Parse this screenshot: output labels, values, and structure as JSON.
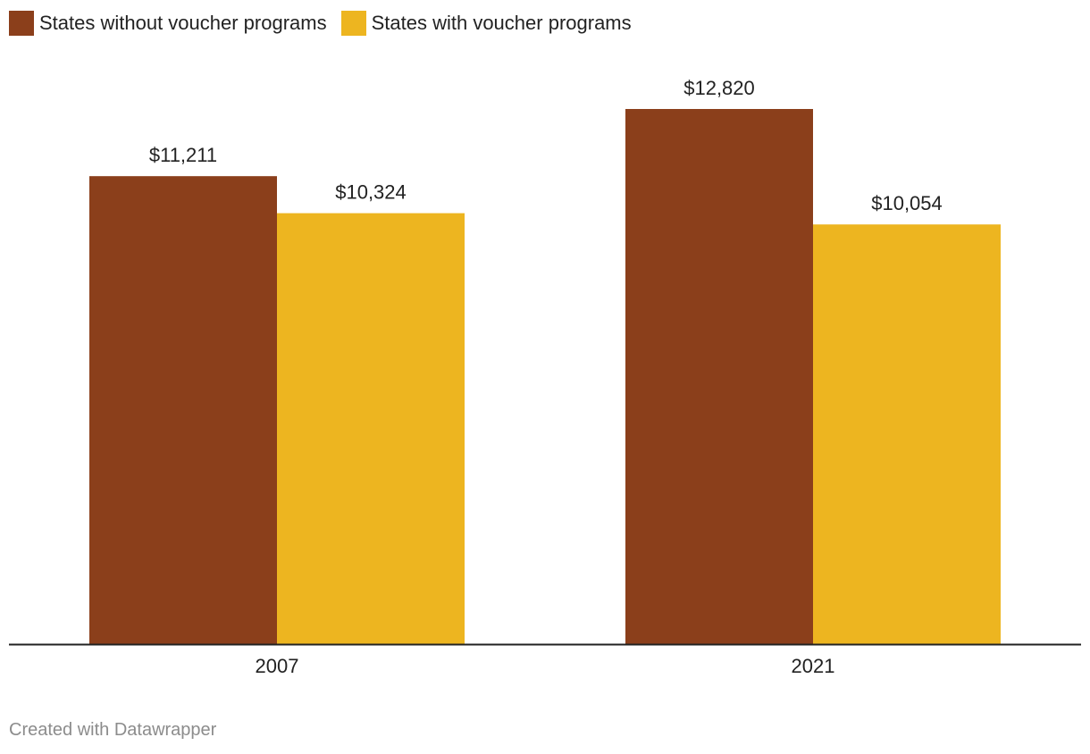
{
  "chart_data": {
    "type": "bar",
    "title": "",
    "xlabel": "",
    "ylabel": "",
    "categories": [
      "2007",
      "2021"
    ],
    "series": [
      {
        "name": "States without voucher programs",
        "color": "#8B3F1B",
        "values": [
          11211,
          12820
        ],
        "labels": [
          "$11,211",
          "$12,820"
        ]
      },
      {
        "name": "States with voucher programs",
        "color": "#EDB520",
        "values": [
          10324,
          10054
        ],
        "labels": [
          "$10,324",
          "$10,054"
        ]
      }
    ],
    "ylim": [
      0,
      12820
    ],
    "grid": false,
    "legend_position": "top-left"
  },
  "footer": {
    "credit": "Created with Datawrapper"
  }
}
